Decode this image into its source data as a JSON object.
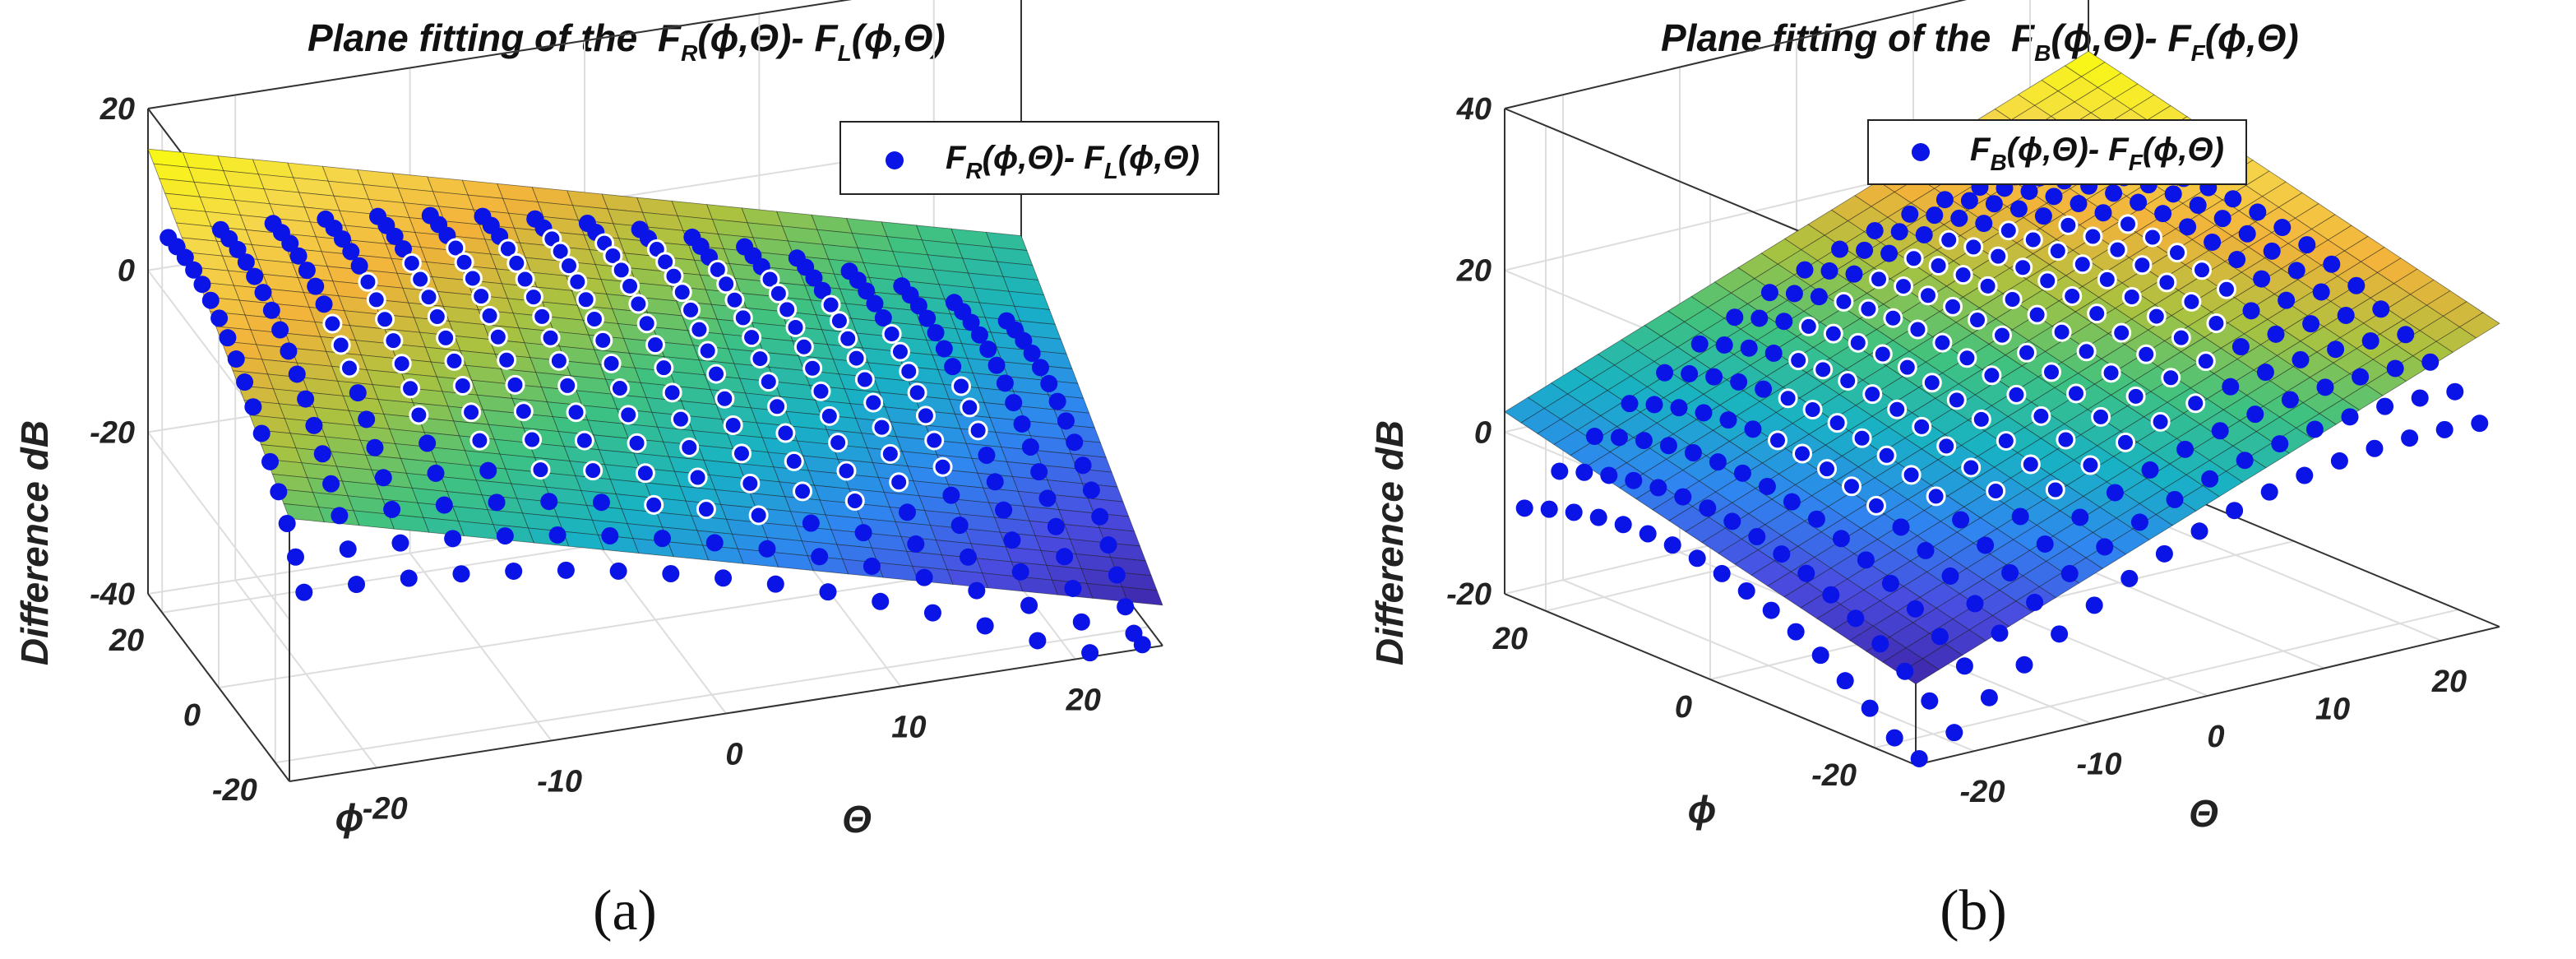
{
  "colors": {
    "marker": "#0a14e6",
    "marker_edge": "#ffffff",
    "grid": "#dddddd",
    "axis": "#333333",
    "colormap": [
      "#3e26a8",
      "#4a4ce0",
      "#2f86f0",
      "#18b2c4",
      "#3fc280",
      "#a8c240",
      "#f2b23a",
      "#f5d84a",
      "#f9fb0e"
    ]
  },
  "chart_data": [
    {
      "type": "surface3d_scatter",
      "panel_label": "(a)",
      "title_prefix": "Plane fitting of the ",
      "title_F1": "F",
      "title_F1_sub": "R",
      "title_mid": "(ϕ,Θ)- ",
      "title_F2": "F",
      "title_F2_sub": "L",
      "title_end": "(ϕ,Θ)",
      "legend_F1": "F",
      "legend_F1_sub": "R",
      "legend_mid": "(ϕ,Θ)- ",
      "legend_F2": "F",
      "legend_F2_sub": "L",
      "legend_end": "(ϕ,Θ)",
      "xlabel": "Θ",
      "ylabel": "ϕ",
      "zlabel": "Difference  dB",
      "xlim": [
        -25,
        25
      ],
      "ylim": [
        -25,
        25
      ],
      "zlim": [
        -40,
        20
      ],
      "xticks": [
        -20,
        -10,
        0,
        10,
        20
      ],
      "yticks": [
        -20,
        0,
        20
      ],
      "zticks": [
        -40,
        -20,
        0,
        20
      ],
      "plane": {
        "intercept": -10,
        "slope_theta": -0.55,
        "slope_phi": 0.45
      },
      "grid_step": 2,
      "scatter_range": [
        -24,
        24
      ],
      "scatter_step": 3,
      "scatter_curvature": -0.012
    },
    {
      "type": "surface3d_scatter",
      "panel_label": "(b)",
      "title_prefix": "Plane fitting of the ",
      "title_F1": "F",
      "title_F1_sub": "B",
      "title_mid": "(ϕ,Θ)- ",
      "title_F2": "F",
      "title_F2_sub": "F",
      "title_end": "(ϕ,Θ)",
      "legend_F1": "F",
      "legend_F1_sub": "B",
      "legend_mid": "(ϕ,Θ)- ",
      "legend_F2": "F",
      "legend_F2_sub": "F",
      "legend_end": "(ϕ,Θ)",
      "xlabel": "Θ",
      "ylabel": "ϕ",
      "zlabel": "Difference  dB",
      "xlim": [
        -25,
        25
      ],
      "ylim": [
        -25,
        25
      ],
      "zlim": [
        -20,
        40
      ],
      "xticks": [
        -20,
        -10,
        0,
        10,
        20
      ],
      "yticks": [
        -20,
        0,
        20
      ],
      "zticks": [
        -20,
        0,
        20,
        40
      ],
      "plane": {
        "intercept": 10,
        "slope_theta": 0.55,
        "slope_phi": 0.25
      },
      "grid_step": 2,
      "scatter_range": [
        -24,
        24
      ],
      "scatter_step": 3,
      "scatter_curvature": -0.014
    }
  ]
}
